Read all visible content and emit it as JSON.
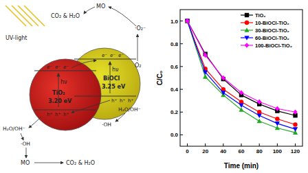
{
  "diagram": {
    "light": "UV-light",
    "top_pollutant": "MO",
    "top_products": "CO₂ & H₂O",
    "superoxide": "·O₂⁻",
    "oxygen": "O₂",
    "electron": "e⁻",
    "hole": "h⁺",
    "excitation": "hν",
    "left_reactant": "H₂O/OH⁻",
    "left_radical": "·OH",
    "right_reactant": "H₂O/OH⁻",
    "right_radical": "·OH",
    "bottom_pollutant": "MO",
    "bottom_products": "CO₂ & H₂O",
    "particles": [
      {
        "name": "TiO₂",
        "band_gap": "3.20 eV",
        "color": "#e8322a"
      },
      {
        "name": "BiOCl",
        "band_gap": "3.25 eV",
        "color": "#e6e22a"
      }
    ]
  },
  "chart_data": {
    "type": "line",
    "x_label": "Time (min)",
    "y_label": "C/C₀",
    "x": [
      0,
      20,
      40,
      60,
      80,
      100,
      120
    ],
    "xlim": [
      -8,
      128
    ],
    "xticks": [
      0,
      20,
      40,
      60,
      80,
      100,
      120
    ],
    "ylim": [
      -0.1,
      1.1
    ],
    "yticks": [
      {
        "value": 0,
        "label": "0.0"
      },
      {
        "value": 0.2,
        "label": "0.2"
      },
      {
        "value": 0.4,
        "label": "0.4"
      },
      {
        "value": 0.6,
        "label": "0.6"
      },
      {
        "value": 0.8,
        "label": "0.8"
      },
      {
        "value": 1,
        "label": "1.0"
      }
    ],
    "grid": false,
    "legend": "upper right",
    "series": [
      {
        "name": "TiO₂",
        "color": "#000000",
        "marker": "square",
        "values": [
          1,
          0.71,
          0.49,
          0.35,
          0.27,
          0.21,
          0.17
        ]
      },
      {
        "name": "10-BiOCl-TiO₂",
        "color": "#ff0000",
        "marker": "circle",
        "values": [
          1,
          0.58,
          0.4,
          0.29,
          0.2,
          0.14,
          0.09
        ]
      },
      {
        "name": "30-BiOCl-TiO₂",
        "color": "#22aa22",
        "marker": "triangle-up",
        "values": [
          1,
          0.51,
          0.35,
          0.22,
          0.12,
          0.06,
          0.02
        ]
      },
      {
        "name": "60-BiOCl-TiO₂",
        "color": "#0000ff",
        "marker": "triangle-down",
        "values": [
          1,
          0.55,
          0.37,
          0.26,
          0.17,
          0.1,
          0.05
        ]
      },
      {
        "name": "100-BiOCl-TiO₂",
        "color": "#ff00ff",
        "marker": "diamond",
        "values": [
          1,
          0.7,
          0.5,
          0.37,
          0.29,
          0.23,
          0.2
        ]
      }
    ]
  }
}
